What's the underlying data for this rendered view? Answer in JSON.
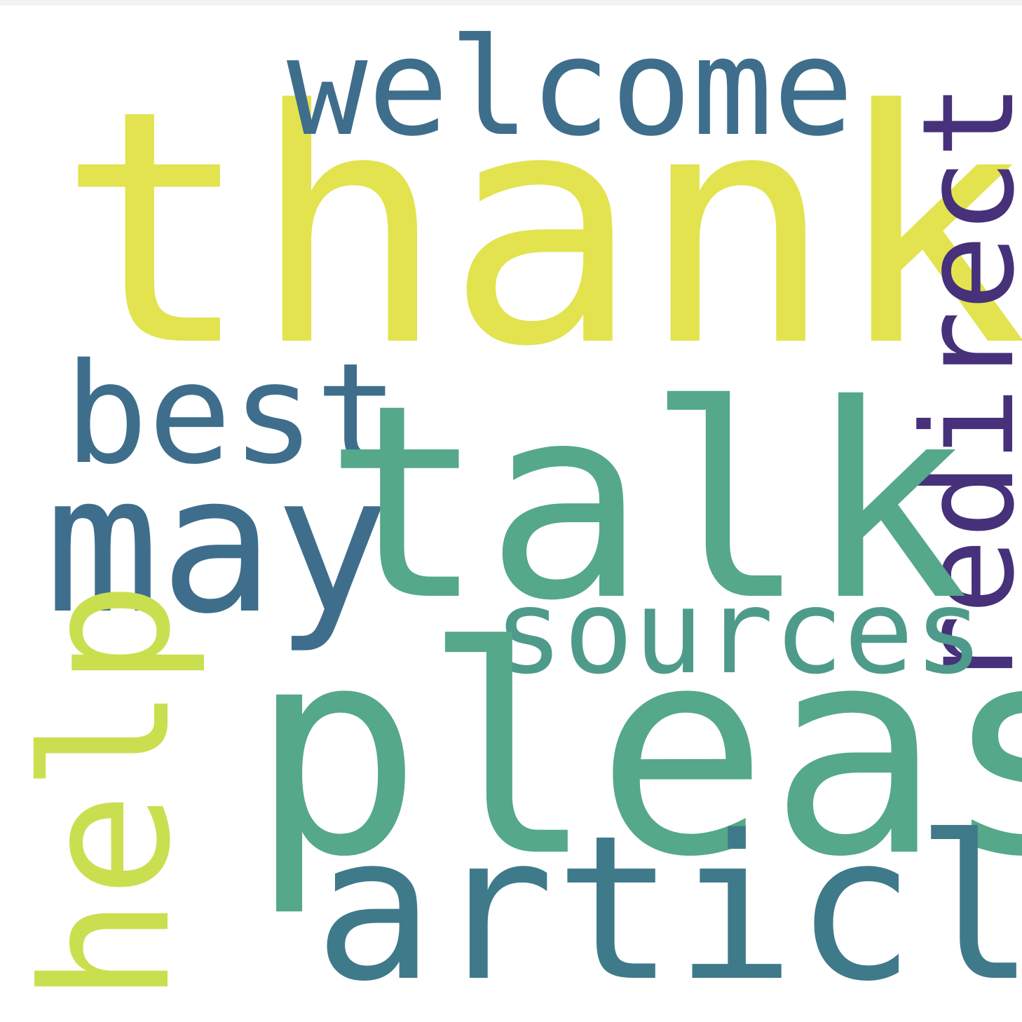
{
  "word_cloud": {
    "background": "#ffffff",
    "words": [
      {
        "id": "thank",
        "text": "thank",
        "color": "#e2e34f",
        "orientation": "horizontal"
      },
      {
        "id": "welcome",
        "text": "welcome",
        "color": "#3e6e8c",
        "orientation": "horizontal"
      },
      {
        "id": "redirect",
        "text": "redirect",
        "color": "#46317a",
        "orientation": "vertical"
      },
      {
        "id": "best",
        "text": "best",
        "color": "#3e6e8c",
        "orientation": "horizontal"
      },
      {
        "id": "may",
        "text": "may",
        "color": "#3e6e8c",
        "orientation": "horizontal"
      },
      {
        "id": "talk",
        "text": "talk",
        "color": "#55a889",
        "orientation": "horizontal"
      },
      {
        "id": "sources",
        "text": "sources",
        "color": "#4f9b8b",
        "orientation": "horizontal"
      },
      {
        "id": "help",
        "text": "help",
        "color": "#cadf50",
        "orientation": "vertical"
      },
      {
        "id": "please",
        "text": "please",
        "color": "#55a889",
        "orientation": "horizontal"
      },
      {
        "id": "article",
        "text": "article",
        "color": "#3f7a8a",
        "orientation": "horizontal"
      }
    ]
  }
}
